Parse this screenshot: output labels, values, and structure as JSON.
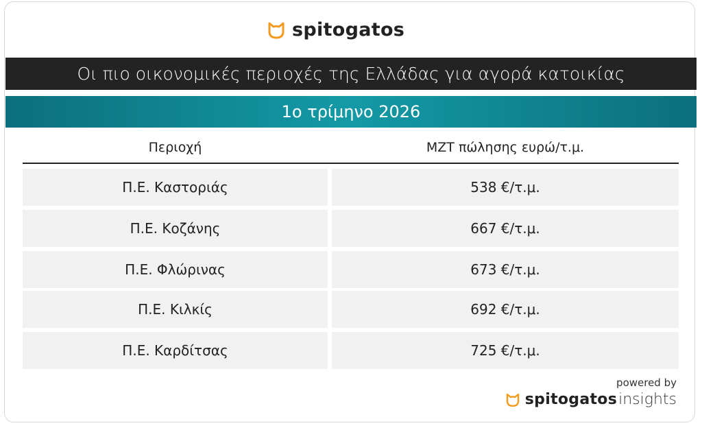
{
  "header": {
    "brand": "spitogatos"
  },
  "title": "Οι πιο οικονομικές περιοχές της Ελλάδας για αγορά κατοικίας",
  "subtitle": "1ο τρίμηνο 2026",
  "table": {
    "columns": [
      "Περιοχή",
      "ΜΖΤ πώλησης ευρώ/τ.μ."
    ],
    "rows": [
      [
        "Π.Ε. Καστοριάς",
        "538 €/τ.μ."
      ],
      [
        "Π.Ε. Κοζάνης",
        "667 €/τ.μ."
      ],
      [
        "Π.Ε. Φλώρινας",
        "673 €/τ.μ."
      ],
      [
        "Π.Ε. Κιλκίς",
        "692 €/τ.μ."
      ],
      [
        "Π.Ε. Καρδίτσας",
        "725 €/τ.μ."
      ]
    ]
  },
  "footer": {
    "powered_by": "powered by",
    "brand": "spitogatos",
    "suffix": "insights"
  }
}
